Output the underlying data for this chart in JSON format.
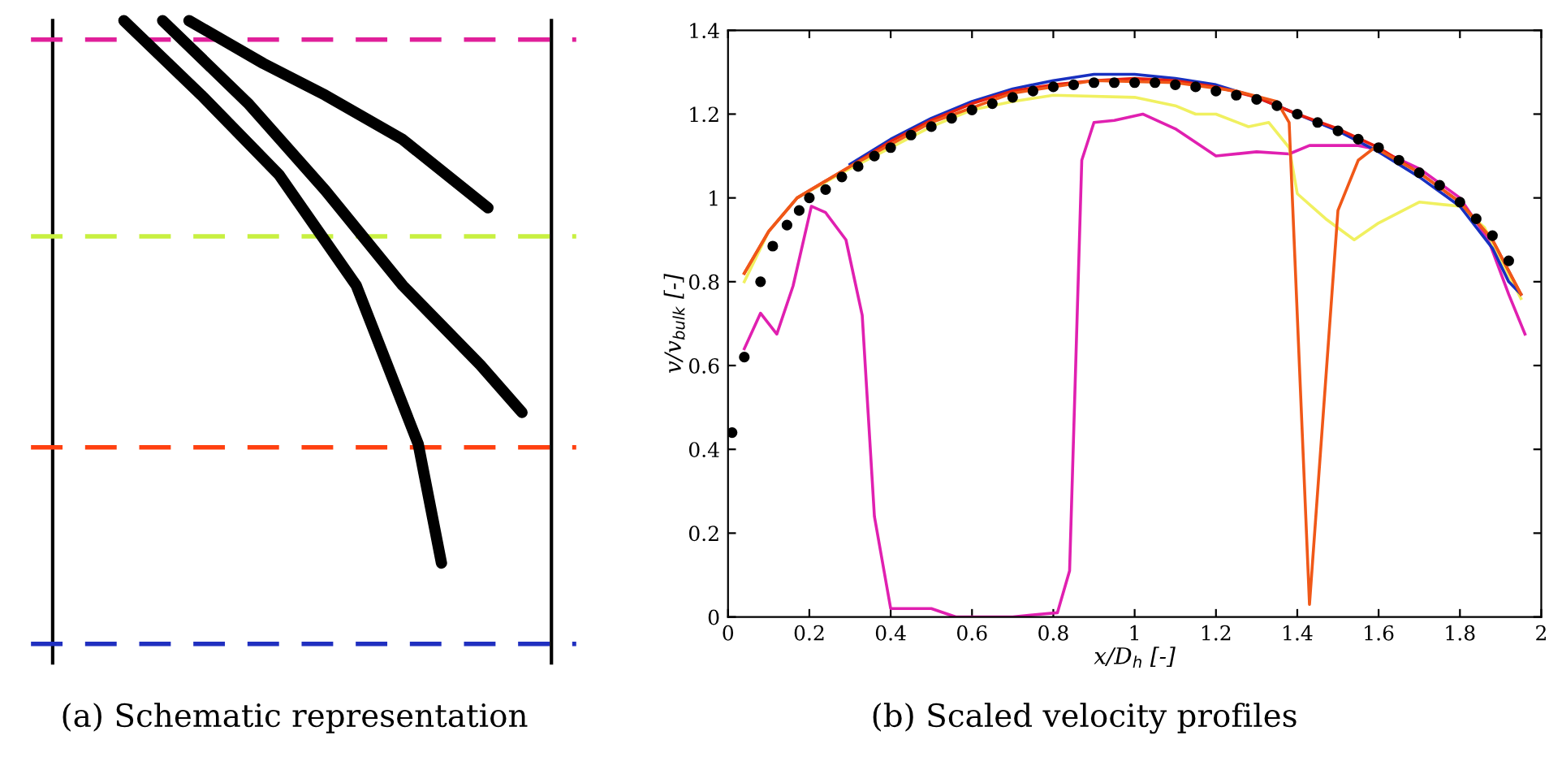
{
  "chart_data": [
    {
      "type": "other",
      "title": "(a) Schematic representation"
    },
    {
      "type": "line",
      "title": "(b) Scaled velocity profiles",
      "xlabel": "x/D$_{h}$ [-]",
      "ylabel": "v/v$_{bulk}$ [-]",
      "xlim": [
        0,
        2
      ],
      "ylim": [
        0,
        1.4
      ],
      "xticks": [
        0,
        0.2,
        0.4,
        0.6,
        0.8,
        1,
        1.2,
        1.4,
        1.6,
        1.8,
        2
      ],
      "yticks": [
        0,
        0.2,
        0.4,
        0.6,
        0.8,
        1,
        1.2,
        1.4
      ],
      "grid": false,
      "legend": false,
      "series": [
        {
          "color": "#e020b0",
          "x": [
            0.04,
            0.08,
            0.12,
            0.16,
            0.205,
            0.24,
            0.29,
            0.33,
            0.36,
            0.4,
            0.5,
            0.56,
            0.7,
            0.75,
            0.81,
            0.84,
            0.87,
            0.9,
            0.95,
            1.02,
            1.1,
            1.2,
            1.3,
            1.38,
            1.43,
            1.55,
            1.6,
            1.7,
            1.8,
            1.87,
            1.92,
            1.96
          ],
          "values": [
            0.64,
            0.725,
            0.675,
            0.79,
            0.98,
            0.965,
            0.9,
            0.72,
            0.24,
            0.02,
            0.02,
            0.0,
            0.0,
            0.005,
            0.01,
            0.11,
            1.09,
            1.18,
            1.185,
            1.2,
            1.165,
            1.1,
            1.11,
            1.105,
            1.125,
            1.125,
            1.115,
            1.07,
            1.0,
            0.9,
            0.77,
            0.675
          ]
        },
        {
          "color": "#f0f060",
          "x": [
            0.04,
            0.1,
            0.17,
            0.3,
            0.5,
            0.6,
            0.7,
            0.8,
            1.0,
            1.1,
            1.15,
            1.2,
            1.28,
            1.33,
            1.38,
            1.4,
            1.47,
            1.54,
            1.6,
            1.7,
            1.8,
            1.86,
            1.95
          ],
          "values": [
            0.8,
            0.92,
            1.0,
            1.07,
            1.17,
            1.21,
            1.23,
            1.245,
            1.24,
            1.22,
            1.2,
            1.2,
            1.17,
            1.18,
            1.12,
            1.01,
            0.95,
            0.9,
            0.94,
            0.99,
            0.98,
            0.93,
            0.76
          ]
        },
        {
          "color": "#1830c0",
          "x": [
            0.3,
            0.4,
            0.5,
            0.6,
            0.7,
            0.8,
            0.9,
            1.0,
            1.1,
            1.2,
            1.3,
            1.4,
            1.5,
            1.6,
            1.7,
            1.8,
            1.88,
            1.92,
            1.95
          ],
          "values": [
            1.08,
            1.14,
            1.19,
            1.23,
            1.26,
            1.28,
            1.295,
            1.295,
            1.285,
            1.27,
            1.24,
            1.2,
            1.16,
            1.11,
            1.05,
            0.98,
            0.88,
            0.8,
            0.77
          ]
        },
        {
          "color": "#e82010",
          "x": [
            0.04,
            0.1,
            0.17,
            0.3,
            0.4,
            0.5,
            0.6,
            0.7,
            0.8,
            0.9,
            1.0,
            1.1,
            1.2,
            1.3,
            1.4,
            1.5,
            1.6,
            1.7,
            1.8,
            1.88,
            1.95
          ],
          "values": [
            0.82,
            0.92,
            1.0,
            1.075,
            1.135,
            1.185,
            1.225,
            1.255,
            1.27,
            1.28,
            1.285,
            1.28,
            1.265,
            1.24,
            1.2,
            1.165,
            1.12,
            1.06,
            0.99,
            0.9,
            0.77
          ]
        },
        {
          "color": "#f05818",
          "x": [
            0.04,
            0.1,
            0.17,
            0.3,
            0.5,
            0.7,
            0.9,
            1.1,
            1.25,
            1.35,
            1.38,
            1.43,
            1.5,
            1.55,
            1.59,
            1.7,
            1.8,
            1.88,
            1.95
          ],
          "values": [
            0.82,
            0.92,
            1.0,
            1.075,
            1.18,
            1.25,
            1.28,
            1.275,
            1.255,
            1.23,
            1.18,
            0.03,
            0.97,
            1.09,
            1.12,
            1.06,
            0.99,
            0.9,
            0.77
          ]
        },
        {
          "type": "scatter",
          "marker": "circle",
          "color": "#000000",
          "x": [
            0.01,
            0.04,
            0.08,
            0.11,
            0.145,
            0.175,
            0.2,
            0.24,
            0.28,
            0.32,
            0.36,
            0.4,
            0.45,
            0.5,
            0.55,
            0.6,
            0.65,
            0.7,
            0.75,
            0.8,
            0.85,
            0.9,
            0.95,
            1.0,
            1.05,
            1.1,
            1.15,
            1.2,
            1.25,
            1.3,
            1.35,
            1.4,
            1.45,
            1.5,
            1.55,
            1.6,
            1.65,
            1.7,
            1.75,
            1.8,
            1.84,
            1.88,
            1.92
          ],
          "values": [
            0.44,
            0.62,
            0.8,
            0.885,
            0.935,
            0.97,
            1.0,
            1.02,
            1.05,
            1.075,
            1.1,
            1.12,
            1.15,
            1.17,
            1.19,
            1.21,
            1.225,
            1.24,
            1.255,
            1.265,
            1.27,
            1.275,
            1.275,
            1.275,
            1.275,
            1.27,
            1.265,
            1.255,
            1.245,
            1.235,
            1.22,
            1.2,
            1.18,
            1.16,
            1.14,
            1.12,
            1.09,
            1.06,
            1.03,
            0.99,
            0.95,
            0.91,
            0.85
          ]
        }
      ]
    }
  ]
}
